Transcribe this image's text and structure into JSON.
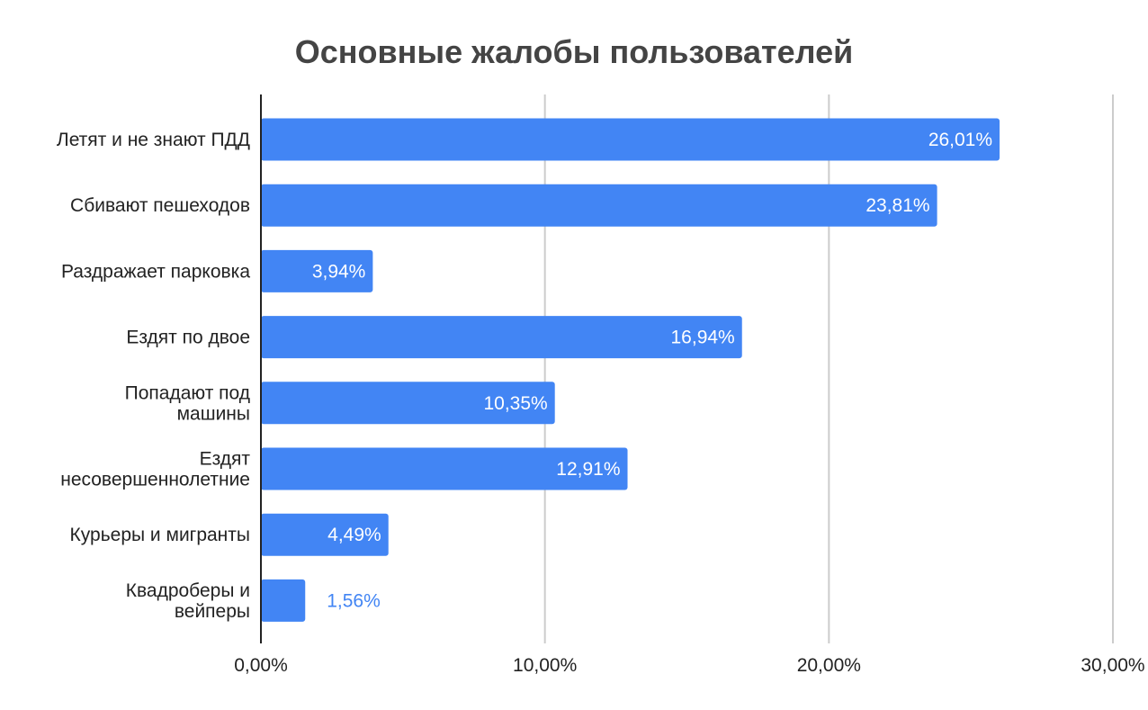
{
  "chart_data": {
    "type": "bar",
    "orientation": "horizontal",
    "title": "Основные жалобы пользователей",
    "xlabel": "",
    "ylabel": "",
    "categories": [
      "Летят и не знают ПДД",
      "Сбивают пешеходов",
      "Раздражает парковка",
      "Ездят по двое",
      "Попадают под машины",
      "Ездят несовершеннолетние",
      "Курьеры и мигранты",
      "Квадроберы и вейперы"
    ],
    "category_lines": [
      [
        "Летят и не знают ПДД"
      ],
      [
        "Сбивают пешеходов"
      ],
      [
        "Раздражает парковка"
      ],
      [
        "Ездят по двое"
      ],
      [
        "Попадают под",
        "машины"
      ],
      [
        "Ездят",
        "несовершеннолетние"
      ],
      [
        "Курьеры и мигранты"
      ],
      [
        "Квадроберы и",
        "вейперы"
      ]
    ],
    "values": [
      26.01,
      23.81,
      3.94,
      16.94,
      10.35,
      12.91,
      4.49,
      1.56
    ],
    "data_labels": [
      "26,01%",
      "23,81%",
      "3,94%",
      "16,94%",
      "10,35%",
      "12,91%",
      "4,49%",
      "1,56%"
    ],
    "xlim": [
      0,
      30
    ],
    "x_ticks": [
      0,
      10,
      20,
      30
    ],
    "x_tick_labels": [
      "0,00%",
      "10,00%",
      "20,00%",
      "30,00%"
    ],
    "grid": true,
    "legend": "none",
    "colors": {
      "bar": "#4285f4",
      "label_inside": "#ffffff",
      "label_outside": "#4285f4",
      "grid": "#cccccc",
      "axis": "#222222",
      "title": "#444444"
    }
  }
}
